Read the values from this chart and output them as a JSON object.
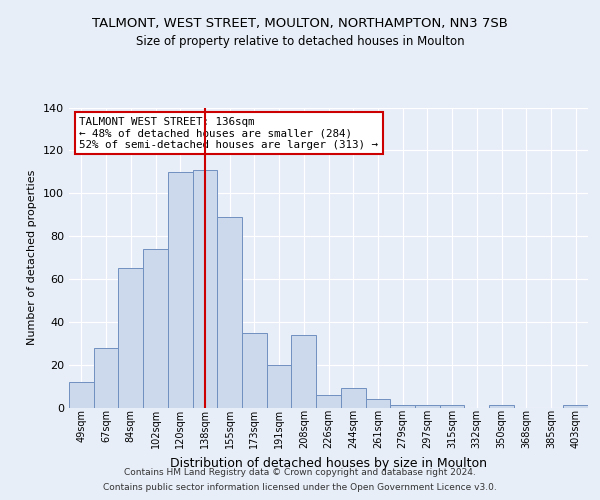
{
  "title": "TALMONT, WEST STREET, MOULTON, NORTHAMPTON, NN3 7SB",
  "subtitle": "Size of property relative to detached houses in Moulton",
  "xlabel": "Distribution of detached houses by size in Moulton",
  "ylabel": "Number of detached properties",
  "categories": [
    "49sqm",
    "67sqm",
    "84sqm",
    "102sqm",
    "120sqm",
    "138sqm",
    "155sqm",
    "173sqm",
    "191sqm",
    "208sqm",
    "226sqm",
    "244sqm",
    "261sqm",
    "279sqm",
    "297sqm",
    "315sqm",
    "332sqm",
    "350sqm",
    "368sqm",
    "385sqm",
    "403sqm"
  ],
  "values": [
    12,
    28,
    65,
    74,
    110,
    111,
    89,
    35,
    20,
    34,
    6,
    9,
    4,
    1,
    1,
    1,
    0,
    1,
    0,
    0,
    1
  ],
  "bar_color": "#ccd9ed",
  "bar_edge_color": "#7090c0",
  "vline_x": 5,
  "vline_color": "#cc0000",
  "annotation_text": "TALMONT WEST STREET: 136sqm\n← 48% of detached houses are smaller (284)\n52% of semi-detached houses are larger (313) →",
  "annotation_box_color": "#ffffff",
  "annotation_box_edge": "#cc0000",
  "ylim": [
    0,
    140
  ],
  "yticks": [
    0,
    20,
    40,
    60,
    80,
    100,
    120,
    140
  ],
  "background_color": "#e8eef8",
  "grid_color": "#ffffff",
  "fig_background": "#e8eef8",
  "footer_line1": "Contains HM Land Registry data © Crown copyright and database right 2024.",
  "footer_line2": "Contains public sector information licensed under the Open Government Licence v3.0."
}
